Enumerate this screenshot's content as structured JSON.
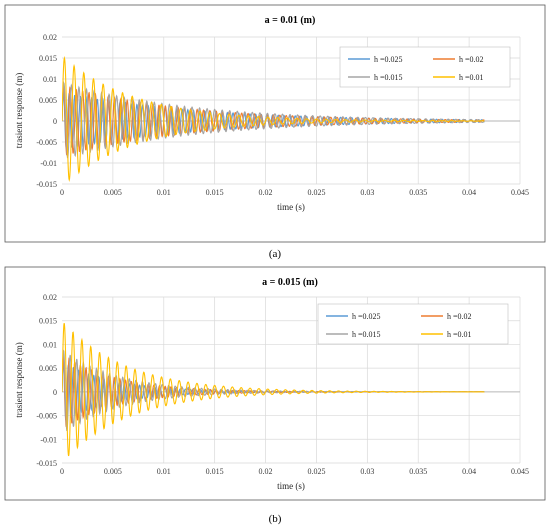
{
  "colors": {
    "h=0.025": "#5B9BD5",
    "h=0.02": "#ED7D31",
    "h=0.015": "#A5A5A5",
    "h=0.01": "#FFC000",
    "grid": "#D9D9D9",
    "frame": "#595959"
  },
  "chart_data": [
    {
      "type": "line",
      "panel_label": "(a)",
      "title": "a = 0.01 (m)",
      "xlabel": "time (s)",
      "ylabel": "trasient response (m)",
      "xlim": [
        0,
        0.045
      ],
      "ylim": [
        -0.015,
        0.02
      ],
      "xticks": [
        "0",
        "0.005",
        "0.01",
        "0.015",
        "0.02",
        "0.025",
        "0.03",
        "0.035",
        "0.04",
        "0.045"
      ],
      "yticks": [
        "0.02",
        "0.015",
        "0.01",
        "0.005",
        "0",
        "-0.005",
        "-0.01",
        "-0.015"
      ],
      "grid": true,
      "legend_position": "top-right",
      "legend": [
        "h =0.025",
        "h =0.02",
        "h =0.015",
        "h =0.01"
      ],
      "x_end": 0.0415,
      "series": [
        {
          "name": "h =0.025",
          "color_key": "h=0.025",
          "peak_amplitude": 0.0068,
          "frequency_hz": 1800,
          "decay_per_s": 75
        },
        {
          "name": "h =0.02",
          "color_key": "h=0.02",
          "peak_amplitude": 0.0085,
          "frequency_hz": 1600,
          "decay_per_s": 85
        },
        {
          "name": "h =0.015",
          "color_key": "h=0.015",
          "peak_amplitude": 0.0092,
          "frequency_hz": 1350,
          "decay_per_s": 80
        },
        {
          "name": "h =0.01",
          "color_key": "h=0.01",
          "peak_amplitude": 0.0155,
          "frequency_hz": 1050,
          "decay_per_s": 140
        }
      ]
    },
    {
      "type": "line",
      "panel_label": "(b)",
      "title": "a = 0.015 (m)",
      "xlabel": "time (s)",
      "ylabel": "trasient response (m)",
      "xlim": [
        0,
        0.045
      ],
      "ylim": [
        -0.015,
        0.02
      ],
      "xticks": [
        "0",
        "0.005",
        "0.01",
        "0.015",
        "0.02",
        "0.025",
        "0.03",
        "0.035",
        "0.04",
        "0.045"
      ],
      "yticks": [
        "0.02",
        "0.015",
        "0.01",
        "0.005",
        "0",
        "-0.005",
        "-0.01",
        "-0.015"
      ],
      "grid": true,
      "legend_position": "top-right",
      "legend": [
        "h =0.025",
        "h =0.02",
        "h =0.015",
        "h =0.01"
      ],
      "x_end": 0.0415,
      "series": [
        {
          "name": "h =0.025",
          "color_key": "h=0.025",
          "peak_amplitude": 0.0065,
          "frequency_hz": 2000,
          "decay_per_s": 200
        },
        {
          "name": "h =0.02",
          "color_key": "h=0.02",
          "peak_amplitude": 0.008,
          "frequency_hz": 1800,
          "decay_per_s": 190
        },
        {
          "name": "h =0.015",
          "color_key": "h=0.015",
          "peak_amplitude": 0.009,
          "frequency_hz": 1550,
          "decay_per_s": 180
        },
        {
          "name": "h =0.01",
          "color_key": "h=0.01",
          "peak_amplitude": 0.015,
          "frequency_hz": 1150,
          "decay_per_s": 160
        }
      ]
    }
  ]
}
